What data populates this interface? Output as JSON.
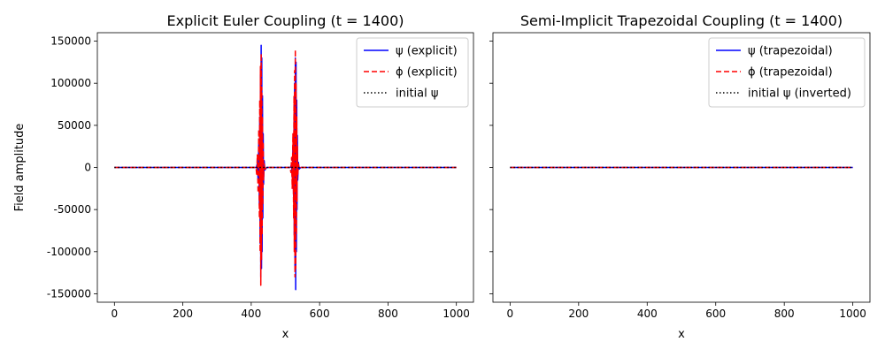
{
  "chart_data": [
    {
      "type": "line",
      "title": "Explicit Euler Coupling (t = 1400)",
      "xlabel": "x",
      "ylabel": "Field amplitude",
      "xlim": [
        -50,
        1050
      ],
      "ylim": [
        -160000,
        160000
      ],
      "xticks": [
        0,
        200,
        400,
        600,
        800,
        1000
      ],
      "yticks": [
        -150000,
        -100000,
        -50000,
        0,
        50000,
        100000,
        150000
      ],
      "legend_position": "top-right",
      "grid": false,
      "series": [
        {
          "name": "ψ (explicit)",
          "color": "#0000ff",
          "style": "solid",
          "x": [
            0,
            415,
            418,
            420,
            422,
            424,
            425,
            426,
            427,
            428,
            429,
            430,
            431,
            432,
            433,
            434,
            435,
            436,
            438,
            440,
            445,
            515,
            518,
            520,
            522,
            524,
            525,
            526,
            527,
            528,
            529,
            530,
            531,
            532,
            533,
            534,
            535,
            536,
            538,
            540,
            545,
            1000
          ],
          "y": [
            0,
            0,
            5000,
            -15000,
            30000,
            -45000,
            60000,
            -90000,
            110000,
            -130000,
            145000,
            -120000,
            130000,
            -100000,
            85000,
            -60000,
            40000,
            -20000,
            8000,
            -3000,
            0,
            0,
            4000,
            -12000,
            25000,
            -40000,
            60000,
            -80000,
            100000,
            -120000,
            130000,
            -145000,
            125000,
            -100000,
            80000,
            -50000,
            38000,
            -15000,
            6000,
            -2000,
            0,
            0
          ]
        },
        {
          "name": "ϕ (explicit)",
          "color": "#ff0000",
          "style": "dashed",
          "x": [
            0,
            414,
            416,
            418,
            420,
            422,
            424,
            425,
            426,
            427,
            428,
            429,
            430,
            431,
            432,
            433,
            434,
            435,
            436,
            438,
            440,
            445,
            514,
            516,
            518,
            520,
            522,
            524,
            525,
            526,
            527,
            528,
            529,
            530,
            531,
            532,
            533,
            534,
            535,
            536,
            538,
            540,
            545,
            1000
          ],
          "y": [
            0,
            0,
            -8000,
            15000,
            -30000,
            45000,
            -60000,
            80000,
            -100000,
            120000,
            -140000,
            135000,
            -110000,
            95000,
            -80000,
            60000,
            -45000,
            30000,
            -15000,
            5000,
            -2000,
            0,
            0,
            -6000,
            12000,
            -25000,
            40000,
            -60000,
            85000,
            -100000,
            115000,
            -130000,
            140000,
            -120000,
            100000,
            -80000,
            60000,
            -40000,
            25000,
            -10000,
            4000,
            -1000,
            0,
            0
          ]
        },
        {
          "name": "initial ψ",
          "color": "#000000",
          "style": "dotted",
          "x": [
            0,
            1000
          ],
          "y": [
            0,
            0
          ]
        }
      ]
    },
    {
      "type": "line",
      "title": "Semi-Implicit Trapezoidal Coupling (t = 1400)",
      "xlabel": "x",
      "ylabel": "",
      "xlim": [
        -50,
        1050
      ],
      "ylim": [
        -160000,
        160000
      ],
      "xticks": [
        0,
        200,
        400,
        600,
        800,
        1000
      ],
      "legend_position": "top-right",
      "grid": false,
      "series": [
        {
          "name": "ψ (trapezoidal)",
          "color": "#0000ff",
          "style": "solid",
          "x": [
            0,
            1000
          ],
          "y": [
            0,
            0
          ]
        },
        {
          "name": "ϕ (trapezoidal)",
          "color": "#ff0000",
          "style": "dashed",
          "x": [
            0,
            1000
          ],
          "y": [
            0,
            0
          ]
        },
        {
          "name": "initial ψ (inverted)",
          "color": "#000000",
          "style": "dotted",
          "x": [
            0,
            1000
          ],
          "y": [
            0,
            0
          ]
        }
      ]
    }
  ]
}
